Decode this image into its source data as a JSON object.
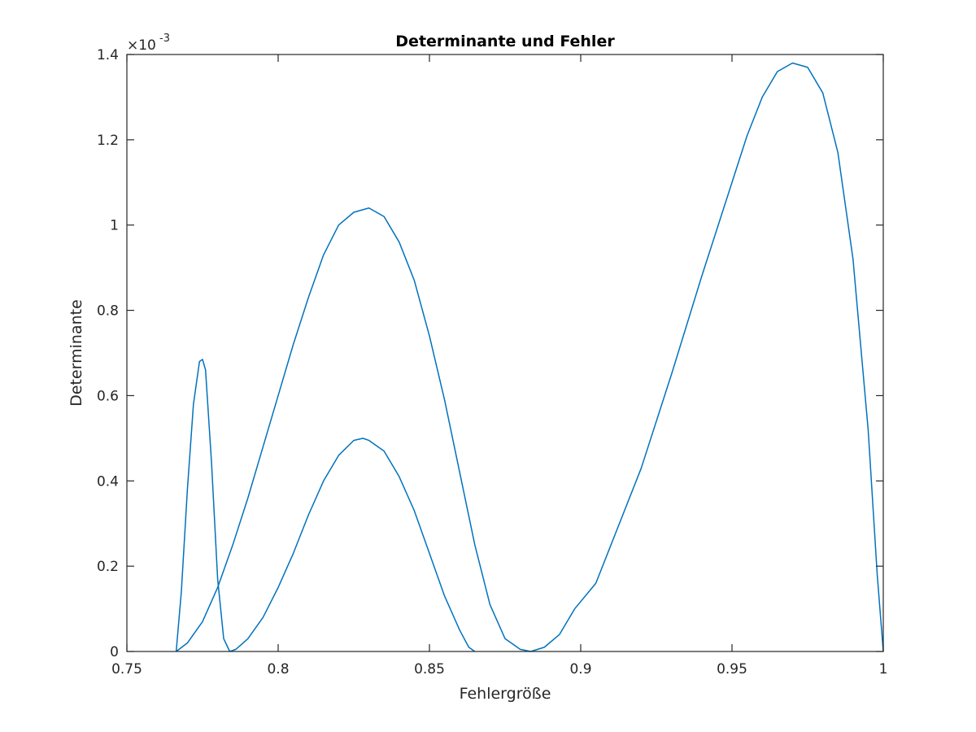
{
  "chart_data": {
    "type": "line",
    "title": "Determinante und Fehler",
    "xlabel": "Fehlergröße",
    "ylabel": "Determinante",
    "xlim": [
      0.75,
      1.0
    ],
    "ylim": [
      0,
      0.0014
    ],
    "y_exponent_label": "×10",
    "y_exponent_power": "-3",
    "x_ticks": [
      0.75,
      0.8,
      0.85,
      0.9,
      0.95,
      1.0
    ],
    "x_tick_labels": [
      "0.75",
      "0.8",
      "0.85",
      "0.9",
      "0.95",
      "1"
    ],
    "y_ticks": [
      0,
      0.0002,
      0.0004,
      0.0006,
      0.0008,
      0.001,
      0.0012,
      0.0014
    ],
    "y_tick_labels": [
      "0",
      "0.2",
      "0.4",
      "0.6",
      "0.8",
      "1",
      "1.2",
      "1.4"
    ],
    "grid": false,
    "box": true,
    "line_color": "#0072BD",
    "series": [
      {
        "x": [
          0.7663,
          0.768,
          0.77,
          0.772,
          0.774,
          0.775,
          0.776,
          0.778,
          0.78,
          0.782,
          0.784
        ],
        "y": [
          0,
          0.00014,
          0.00038,
          0.00058,
          0.00068,
          0.000685,
          0.00066,
          0.00044,
          0.00017,
          3e-05,
          0
        ]
      },
      {
        "x": [
          0.7663,
          0.77,
          0.775,
          0.78,
          0.785,
          0.79,
          0.795,
          0.8,
          0.805,
          0.81,
          0.815,
          0.82,
          0.825,
          0.83,
          0.835,
          0.84,
          0.845,
          0.85,
          0.855,
          0.86,
          0.865,
          0.87,
          0.875,
          0.88,
          0.8835,
          0.888,
          0.893,
          0.898,
          0.905,
          0.91,
          0.92,
          0.93,
          0.94,
          0.95,
          0.955,
          0.96,
          0.965,
          0.97,
          0.975,
          0.98,
          0.985,
          0.99,
          0.995,
          0.998,
          1.0
        ],
        "y": [
          0,
          2e-05,
          7e-05,
          0.00015,
          0.00025,
          0.00036,
          0.00048,
          0.0006,
          0.00072,
          0.00083,
          0.00093,
          0.001,
          0.00103,
          0.00104,
          0.00102,
          0.00096,
          0.00087,
          0.00074,
          0.00059,
          0.00042,
          0.00025,
          0.00011,
          3e-05,
          5e-06,
          0,
          1e-05,
          4e-05,
          0.0001,
          0.00016,
          0.00025,
          0.00043,
          0.00065,
          0.00088,
          0.0011,
          0.00121,
          0.0013,
          0.00136,
          0.00138,
          0.00137,
          0.00131,
          0.00117,
          0.00092,
          0.00052,
          0.00018,
          0
        ]
      },
      {
        "x": [
          0.784,
          0.786,
          0.79,
          0.795,
          0.8,
          0.805,
          0.81,
          0.815,
          0.82,
          0.825,
          0.828,
          0.83,
          0.835,
          0.84,
          0.845,
          0.85,
          0.855,
          0.86,
          0.863,
          0.865
        ],
        "y": [
          0,
          5e-06,
          3e-05,
          8e-05,
          0.00015,
          0.00023,
          0.00032,
          0.0004,
          0.00046,
          0.000495,
          0.0005,
          0.000495,
          0.00047,
          0.00041,
          0.00033,
          0.00023,
          0.00013,
          5e-05,
          1e-05,
          0
        ]
      }
    ]
  }
}
